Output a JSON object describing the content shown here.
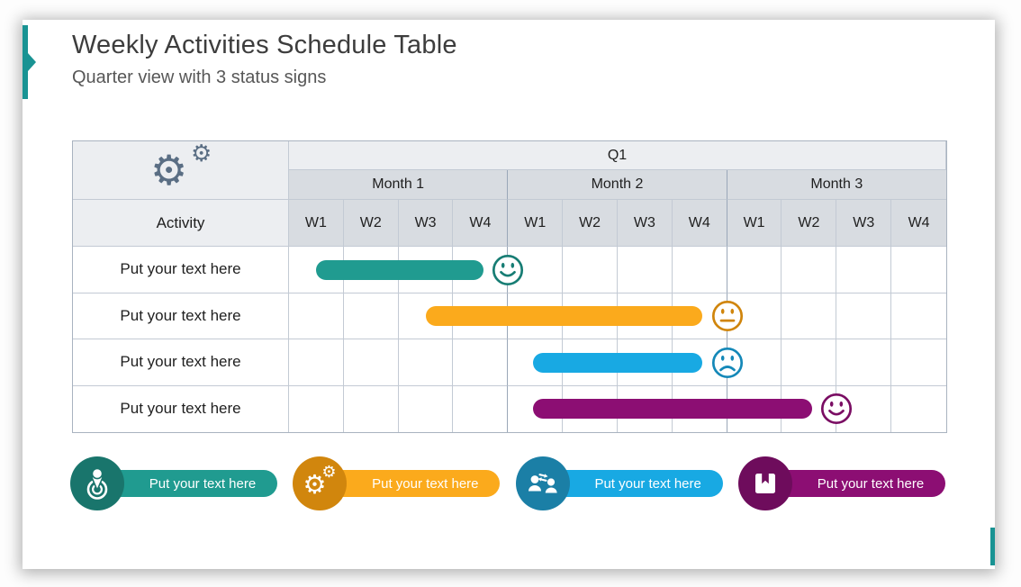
{
  "slide": {
    "title": "Weekly Activities Schedule Table",
    "subtitle": "Quarter view with 3 status signs"
  },
  "colors": {
    "accent": "#199393",
    "grid_line": "#c3cad4",
    "grid_month_line": "#9aa7b8",
    "header_light": "#eceef1",
    "header_mid": "#d8dce1",
    "gears": "#5a6e84"
  },
  "chart_data": {
    "type": "gantt-table",
    "quarter": "Q1",
    "months": [
      "Month 1",
      "Month 2",
      "Month 3"
    ],
    "week_labels": [
      "W1",
      "W2",
      "W3",
      "W4",
      "W1",
      "W2",
      "W3",
      "W4",
      "W1",
      "W2",
      "W3",
      "W4"
    ],
    "weeks_total": 12,
    "activity_header": "Activity",
    "corner_icon": "gears-icon",
    "rows": [
      {
        "label": "Put your text here",
        "bar_start_week": 0.5,
        "bar_end_week": 3.55,
        "bar_color": "#209b90",
        "status": "happy",
        "status_color": "#177d74",
        "status_at_week": 4
      },
      {
        "label": "Put your text here",
        "bar_start_week": 2.5,
        "bar_end_week": 7.55,
        "bar_color": "#fbaa1c",
        "status": "neutral",
        "status_color": "#d0850c",
        "status_at_week": 8
      },
      {
        "label": "Put your text here",
        "bar_start_week": 4.45,
        "bar_end_week": 7.55,
        "bar_color": "#18a9e3",
        "status": "sad",
        "status_color": "#1488b8",
        "status_at_week": 8
      },
      {
        "label": "Put your text here",
        "bar_start_week": 4.45,
        "bar_end_week": 9.55,
        "bar_color": "#8c0e73",
        "status": "happy",
        "status_color": "#7a0d63",
        "status_at_week": 10
      }
    ]
  },
  "legend": {
    "items": [
      {
        "label": "Put your text here",
        "icon": "goal-person-icon",
        "circle_color": "#19756c",
        "pill_color": "#209b90"
      },
      {
        "label": "Put your text here",
        "icon": "gears-icon",
        "circle_color": "#d1860d",
        "pill_color": "#fbaa1c"
      },
      {
        "label": "Put your text here",
        "icon": "people-exchange-icon",
        "circle_color": "#1b7fa6",
        "pill_color": "#18a9e3"
      },
      {
        "label": "Put your text here",
        "icon": "bookmark-icon",
        "circle_color": "#6e0c5c",
        "pill_color": "#8c0e73"
      }
    ]
  }
}
